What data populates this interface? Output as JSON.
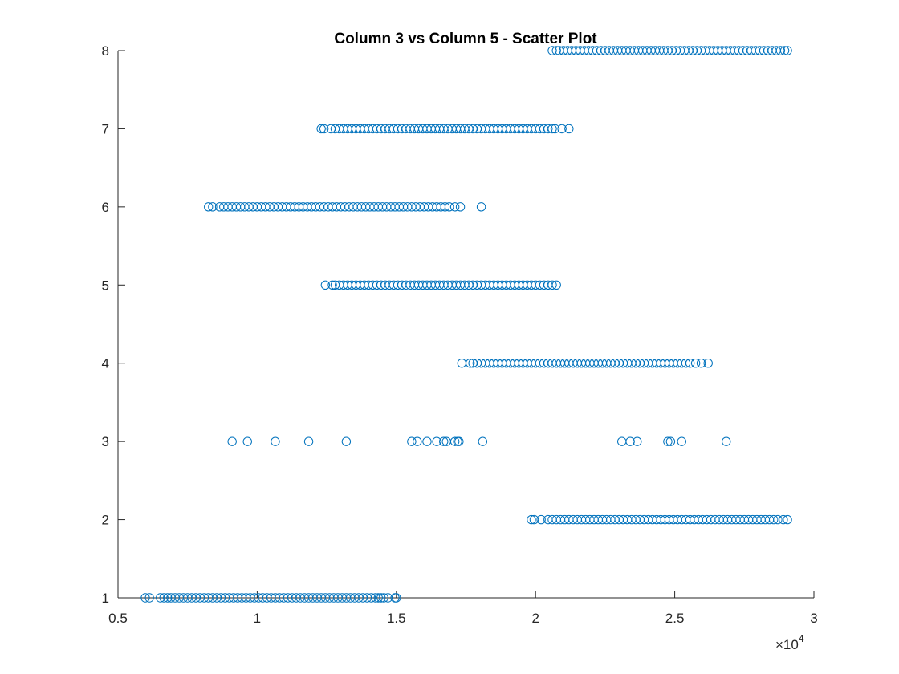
{
  "chart_data": {
    "type": "scatter",
    "title": "Column 3 vs Column 5 - Scatter Plot",
    "xlabel": "",
    "ylabel": "",
    "xlim": [
      5000,
      30000
    ],
    "ylim": [
      1,
      8
    ],
    "x_ticks": [
      5000,
      10000,
      15000,
      20000,
      25000,
      30000
    ],
    "x_tick_labels": [
      "0.5",
      "1",
      "1.5",
      "2",
      "2.5",
      "3"
    ],
    "x_exponent_prefix": "×10",
    "x_exponent_power": "4",
    "y_ticks": [
      1,
      2,
      3,
      4,
      5,
      6,
      7,
      8
    ],
    "y_tick_labels": [
      "1",
      "2",
      "3",
      "4",
      "5",
      "6",
      "7",
      "8"
    ],
    "grid": false,
    "marker": "circle-open",
    "color": "#0072BD",
    "series": [
      {
        "y": 1,
        "x": [
          5980,
          6130,
          6520,
          6650,
          6780,
          6900,
          7050,
          7200,
          7350,
          7500,
          7650,
          7800,
          7950,
          8100,
          8250,
          8400,
          8550,
          8700,
          8850,
          9000,
          9150,
          9300,
          9450,
          9600,
          9750,
          9900,
          10050,
          10200,
          10350,
          10500,
          10650,
          10800,
          10950,
          11100,
          11250,
          11400,
          11550,
          11700,
          11850,
          12000,
          12150,
          12300,
          12450,
          12600,
          12750,
          12900,
          13050,
          13200,
          13350,
          13500,
          13650,
          13800,
          13950,
          14100,
          14250,
          14350,
          14450,
          14550,
          14700,
          14950,
          15000
        ]
      },
      {
        "y": 2,
        "x": [
          19850,
          19950,
          20200,
          20450,
          20600,
          20750,
          20900,
          21050,
          21200,
          21350,
          21500,
          21650,
          21800,
          21950,
          22100,
          22250,
          22400,
          22550,
          22700,
          22850,
          23000,
          23150,
          23300,
          23450,
          23600,
          23750,
          23900,
          24050,
          24200,
          24350,
          24500,
          24650,
          24800,
          24950,
          25100,
          25250,
          25400,
          25550,
          25700,
          25850,
          26000,
          26150,
          26300,
          26450,
          26600,
          26750,
          26900,
          27050,
          27200,
          27350,
          27500,
          27650,
          27800,
          27950,
          28100,
          28250,
          28400,
          28550,
          28700,
          28900,
          29050
        ]
      },
      {
        "y": 3,
        "x": [
          9100,
          9650,
          10650,
          11850,
          13200,
          15550,
          15750,
          16100,
          16450,
          16700,
          16800,
          17100,
          17200,
          17250,
          18100,
          23100,
          23400,
          23650,
          24750,
          24850,
          25250,
          26850
        ]
      },
      {
        "y": 4,
        "x": [
          17350,
          17650,
          17750,
          17900,
          18050,
          18200,
          18350,
          18500,
          18650,
          18800,
          18950,
          19100,
          19250,
          19400,
          19550,
          19700,
          19850,
          20000,
          20150,
          20300,
          20450,
          20600,
          20750,
          20900,
          21050,
          21200,
          21350,
          21500,
          21650,
          21800,
          21950,
          22100,
          22250,
          22400,
          22550,
          22700,
          22850,
          23000,
          23150,
          23300,
          23450,
          23600,
          23750,
          23900,
          24050,
          24200,
          24350,
          24500,
          24650,
          24800,
          24950,
          25100,
          25250,
          25400,
          25550,
          25750,
          25950,
          26200
        ]
      },
      {
        "y": 5,
        "x": [
          12450,
          12700,
          12800,
          12950,
          13100,
          13250,
          13400,
          13550,
          13700,
          13850,
          14000,
          14150,
          14300,
          14450,
          14600,
          14750,
          14900,
          15050,
          15200,
          15350,
          15500,
          15650,
          15800,
          15950,
          16100,
          16250,
          16400,
          16550,
          16700,
          16850,
          17000,
          17150,
          17300,
          17450,
          17600,
          17750,
          17900,
          18050,
          18200,
          18350,
          18500,
          18650,
          18800,
          18950,
          19100,
          19250,
          19400,
          19550,
          19700,
          19850,
          20000,
          20150,
          20300,
          20450,
          20600,
          20750
        ]
      },
      {
        "y": 6,
        "x": [
          8250,
          8400,
          8650,
          8800,
          8950,
          9100,
          9250,
          9400,
          9550,
          9700,
          9850,
          10000,
          10150,
          10300,
          10450,
          10600,
          10750,
          10900,
          11050,
          11200,
          11350,
          11500,
          11650,
          11800,
          11950,
          12100,
          12250,
          12400,
          12550,
          12700,
          12850,
          13000,
          13150,
          13300,
          13450,
          13600,
          13750,
          13900,
          14050,
          14200,
          14350,
          14500,
          14650,
          14800,
          14950,
          15100,
          15250,
          15400,
          15550,
          15700,
          15850,
          16000,
          16150,
          16300,
          16450,
          16600,
          16750,
          16900,
          17100,
          17300,
          18050
        ]
      },
      {
        "y": 7,
        "x": [
          12300,
          12400,
          12650,
          12800,
          12950,
          13100,
          13250,
          13400,
          13550,
          13700,
          13850,
          14000,
          14150,
          14300,
          14450,
          14600,
          14750,
          14900,
          15050,
          15200,
          15350,
          15500,
          15650,
          15800,
          15950,
          16100,
          16250,
          16400,
          16550,
          16700,
          16850,
          17000,
          17150,
          17300,
          17450,
          17600,
          17750,
          17900,
          18050,
          18200,
          18350,
          18500,
          18650,
          18800,
          18950,
          19100,
          19250,
          19400,
          19550,
          19700,
          19850,
          20000,
          20150,
          20300,
          20450,
          20600,
          20700,
          20950,
          21200
        ]
      },
      {
        "y": 8,
        "x": [
          20600,
          20750,
          20850,
          21000,
          21150,
          21300,
          21450,
          21600,
          21750,
          21900,
          22050,
          22200,
          22350,
          22500,
          22650,
          22800,
          22950,
          23100,
          23250,
          23400,
          23550,
          23700,
          23850,
          24000,
          24150,
          24300,
          24450,
          24600,
          24750,
          24900,
          25050,
          25200,
          25350,
          25500,
          25650,
          25800,
          25950,
          26100,
          26250,
          26400,
          26550,
          26700,
          26850,
          27000,
          27150,
          27300,
          27450,
          27600,
          27750,
          27900,
          28050,
          28200,
          28350,
          28500,
          28650,
          28800,
          28950,
          29050
        ]
      }
    ]
  }
}
